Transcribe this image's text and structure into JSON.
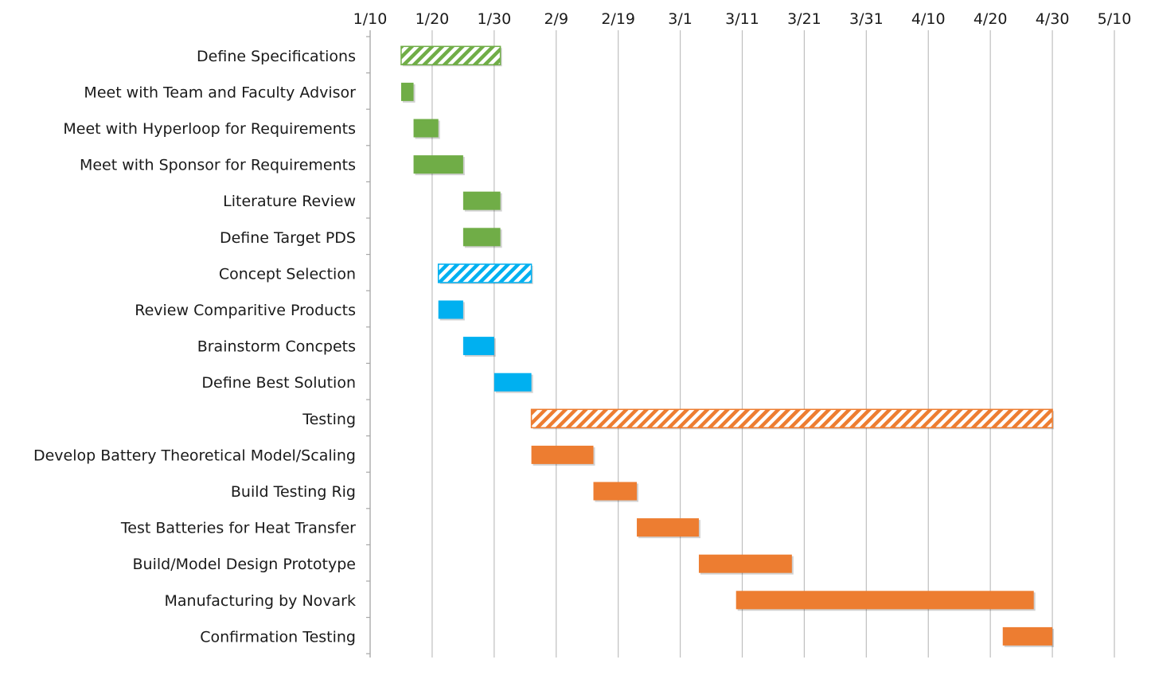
{
  "chart_data": {
    "type": "gantt",
    "title": "",
    "xlabel": "",
    "ylabel": "",
    "x_axis": {
      "position": "top",
      "domain": [
        "2018-01-10",
        "2018-05-10"
      ],
      "ticks": [
        {
          "date": "2018-01-10",
          "label": "1/10"
        },
        {
          "date": "2018-01-20",
          "label": "1/20"
        },
        {
          "date": "2018-01-30",
          "label": "1/30"
        },
        {
          "date": "2018-02-09",
          "label": "2/9"
        },
        {
          "date": "2018-02-19",
          "label": "2/19"
        },
        {
          "date": "2018-03-01",
          "label": "3/1"
        },
        {
          "date": "2018-03-11",
          "label": "3/11"
        },
        {
          "date": "2018-03-21",
          "label": "3/21"
        },
        {
          "date": "2018-03-31",
          "label": "3/31"
        },
        {
          "date": "2018-04-10",
          "label": "4/10"
        },
        {
          "date": "2018-04-20",
          "label": "4/20"
        },
        {
          "date": "2018-04-30",
          "label": "4/30"
        },
        {
          "date": "2018-05-10",
          "label": "5/10"
        }
      ],
      "grid": true
    },
    "legend": "none",
    "colors": {
      "green": "#70ad47",
      "blue": "#00b0f0",
      "orange": "#ed7d31",
      "grid": "#bfbfbf",
      "axis": "#a6a6a6"
    },
    "tasks": [
      {
        "label": "Define Specifications",
        "start": "2018-01-15",
        "end": "2018-01-31",
        "color": "green",
        "style": "hatched"
      },
      {
        "label": "Meet with Team and Faculty Advisor",
        "start": "2018-01-15",
        "end": "2018-01-17",
        "color": "green",
        "style": "solid"
      },
      {
        "label": "Meet with Hyperloop for Requirements",
        "start": "2018-01-17",
        "end": "2018-01-21",
        "color": "green",
        "style": "solid"
      },
      {
        "label": "Meet with Sponsor for Requirements",
        "start": "2018-01-17",
        "end": "2018-01-25",
        "color": "green",
        "style": "solid"
      },
      {
        "label": "Literature Review",
        "start": "2018-01-25",
        "end": "2018-01-31",
        "color": "green",
        "style": "solid"
      },
      {
        "label": "Define Target PDS",
        "start": "2018-01-25",
        "end": "2018-01-31",
        "color": "green",
        "style": "solid"
      },
      {
        "label": "Concept Selection",
        "start": "2018-01-21",
        "end": "2018-02-05",
        "color": "blue",
        "style": "hatched"
      },
      {
        "label": "Review Comparitive Products",
        "start": "2018-01-21",
        "end": "2018-01-25",
        "color": "blue",
        "style": "solid"
      },
      {
        "label": "Brainstorm Concpets",
        "start": "2018-01-25",
        "end": "2018-01-30",
        "color": "blue",
        "style": "solid"
      },
      {
        "label": "Define Best Solution",
        "start": "2018-01-30",
        "end": "2018-02-05",
        "color": "blue",
        "style": "solid"
      },
      {
        "label": "Testing",
        "start": "2018-02-05",
        "end": "2018-04-30",
        "color": "orange",
        "style": "hatched"
      },
      {
        "label": "Develop Battery Theoretical Model/Scaling",
        "start": "2018-02-05",
        "end": "2018-02-15",
        "color": "orange",
        "style": "solid"
      },
      {
        "label": "Build Testing Rig",
        "start": "2018-02-15",
        "end": "2018-02-22",
        "color": "orange",
        "style": "solid"
      },
      {
        "label": "Test Batteries for Heat Transfer",
        "start": "2018-02-22",
        "end": "2018-03-04",
        "color": "orange",
        "style": "solid"
      },
      {
        "label": "Build/Model Design Prototype",
        "start": "2018-03-04",
        "end": "2018-03-19",
        "color": "orange",
        "style": "solid"
      },
      {
        "label": "Manufacturing by Novark",
        "start": "2018-03-10",
        "end": "2018-04-27",
        "color": "orange",
        "style": "solid"
      },
      {
        "label": "Confirmation Testing",
        "start": "2018-04-22",
        "end": "2018-04-30",
        "color": "orange",
        "style": "solid"
      }
    ]
  }
}
